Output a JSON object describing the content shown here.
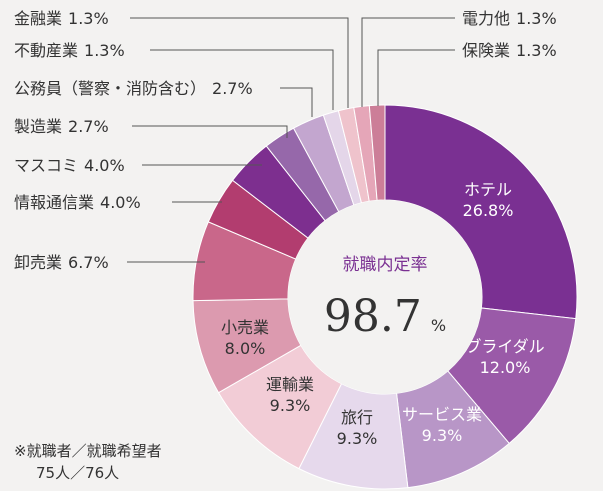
{
  "chart_data": {
    "type": "pie",
    "donut": true,
    "start": "top, clockwise",
    "center_label": "就職内定率",
    "center_value": "98.7",
    "center_unit": "%",
    "slices": [
      {
        "label": "ホテル",
        "value": 26.8,
        "value_text": "26.8%",
        "color": "#7a3092"
      },
      {
        "label": "ブライダル",
        "value": 12.0,
        "value_text": "12.0%",
        "color": "#9a5aa8"
      },
      {
        "label": "サービス業",
        "value": 9.3,
        "value_text": "9.3%",
        "color": "#b896c7"
      },
      {
        "label": "旅行",
        "value": 9.3,
        "value_text": "9.3%",
        "color": "#e6d9ec"
      },
      {
        "label": "運輸業",
        "value": 9.3,
        "value_text": "9.3%",
        "color": "#f2ccd6"
      },
      {
        "label": "小売業",
        "value": 8.0,
        "value_text": "8.0%",
        "color": "#dc9aaf"
      },
      {
        "label": "卸売業",
        "value": 6.7,
        "value_text": "6.7%",
        "color": "#c9678a"
      },
      {
        "label": "情報通信業",
        "value": 4.0,
        "value_text": "4.0%",
        "color": "#b23d6f"
      },
      {
        "label": "マスコミ",
        "value": 4.0,
        "value_text": "4.0%",
        "color": "#7d2f8f"
      },
      {
        "label": "製造業",
        "value": 2.7,
        "value_text": "2.7%",
        "color": "#9668aa"
      },
      {
        "label": "公務員（警察・消防含む）",
        "value": 2.7,
        "value_text": "2.7%",
        "color": "#c3a6cf"
      },
      {
        "label": "金融業",
        "value": 1.3,
        "value_text": "1.3%",
        "color": "#e4d6e9"
      },
      {
        "label": "不動産業",
        "value": 1.3,
        "value_text": "1.3%",
        "color": "#efc3cc"
      },
      {
        "label": "電力他",
        "value": 1.3,
        "value_text": "1.3%",
        "color": "#e5a6b8"
      },
      {
        "label": "保険業",
        "value": 1.3,
        "value_text": "1.3%",
        "color": "#cc7e98"
      }
    ]
  },
  "footnote": {
    "line1": "※就職者／就職希望者",
    "line2": "75人／76人"
  }
}
